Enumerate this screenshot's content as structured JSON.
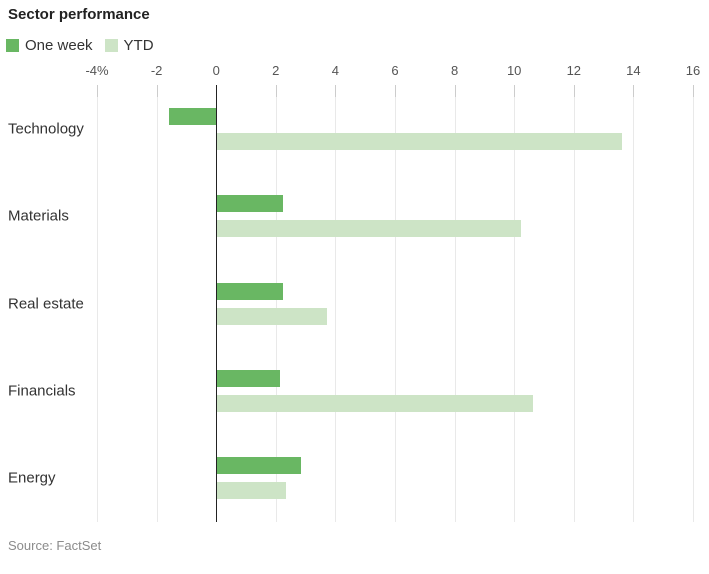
{
  "title": "Sector performance",
  "legend": {
    "items": [
      {
        "label": "One week",
        "color": "#69b763"
      },
      {
        "label": "YTD",
        "color": "#cde4c6"
      }
    ]
  },
  "source": "Source: FactSet",
  "colors": {
    "one_week": "#69b763",
    "ytd": "#cde4c6",
    "axis_zero_line": "#222222",
    "gridline": "#e9e9e9",
    "tick": "#cccccc",
    "tick_label": "#555555",
    "category_label": "#333333",
    "source_text": "#8c8c8c"
  },
  "chart_data": {
    "type": "bar",
    "orientation": "horizontal",
    "title": "Sector performance",
    "categories": [
      "Technology",
      "Materials",
      "Real estate",
      "Financials",
      "Energy"
    ],
    "series": [
      {
        "name": "One week",
        "color": "#69b763",
        "values": [
          -1.6,
          2.2,
          2.2,
          2.1,
          2.8
        ]
      },
      {
        "name": "YTD",
        "color": "#cde4c6",
        "values": [
          13.6,
          10.2,
          3.7,
          10.6,
          2.3
        ]
      }
    ],
    "xlim": [
      -4,
      16
    ],
    "xticks": [
      -4,
      -2,
      0,
      2,
      4,
      6,
      8,
      10,
      12,
      14,
      16
    ],
    "xtick_labels": [
      "-4%",
      "-2",
      "0",
      "2",
      "4",
      "6",
      "8",
      "10",
      "12",
      "14",
      "16"
    ],
    "unit": "percent",
    "grid": true,
    "legend_position": "top-left"
  }
}
